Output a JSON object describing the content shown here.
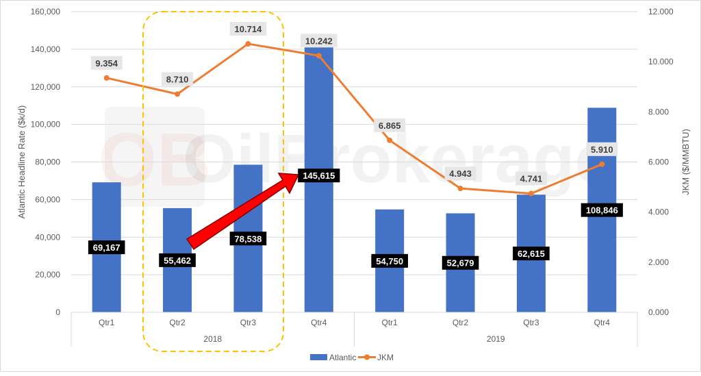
{
  "chart_data": {
    "type": "bar+line",
    "categories": [
      "Qtr1",
      "Qtr2",
      "Qtr3",
      "Qtr4",
      "Qtr1",
      "Qtr2",
      "Qtr3",
      "Qtr4"
    ],
    "groups": [
      {
        "label": "2018",
        "span": 4
      },
      {
        "label": "2019",
        "span": 4
      }
    ],
    "series": [
      {
        "name": "Atlantic",
        "type": "bar",
        "axis": "left",
        "color": "#4472c4",
        "values": [
          69167,
          55462,
          78538,
          145615,
          54750,
          52679,
          62615,
          108846
        ],
        "labels": [
          "69,167",
          "55,462",
          "78,538",
          "145,615",
          "54,750",
          "52,679",
          "62,615",
          "108,846"
        ]
      },
      {
        "name": "JKM",
        "type": "line",
        "axis": "right",
        "color": "#ed7d31",
        "values": [
          9.354,
          8.71,
          10.714,
          10.242,
          6.865,
          4.943,
          4.741,
          5.91
        ],
        "labels": [
          "9.354",
          "8.710",
          "10.714",
          "10.242",
          "6.865",
          "4.943",
          "4.741",
          "5.910"
        ]
      }
    ],
    "ylabel": "Atlantic Headline Rate ($k/d)",
    "y2label": "JKM ($/MMBTU)",
    "ylim": [
      0,
      160000
    ],
    "y2lim": [
      0,
      12
    ],
    "yticks": [
      "0",
      "20,000",
      "40,000",
      "60,000",
      "80,000",
      "100,000",
      "120,000",
      "140,000",
      "160,000"
    ],
    "y2ticks": [
      "0.000",
      "2.000",
      "4.000",
      "6.000",
      "8.000",
      "10.000",
      "12.000"
    ],
    "grid": true,
    "legend": "bottom",
    "annotations": {
      "highlight": "dashed yellow box around 2018 Qtr2-Qtr3",
      "arrow": "red arrow from 2018 Qtr2 to 2018 Qtr4",
      "watermark": "OilBrokerage"
    }
  }
}
